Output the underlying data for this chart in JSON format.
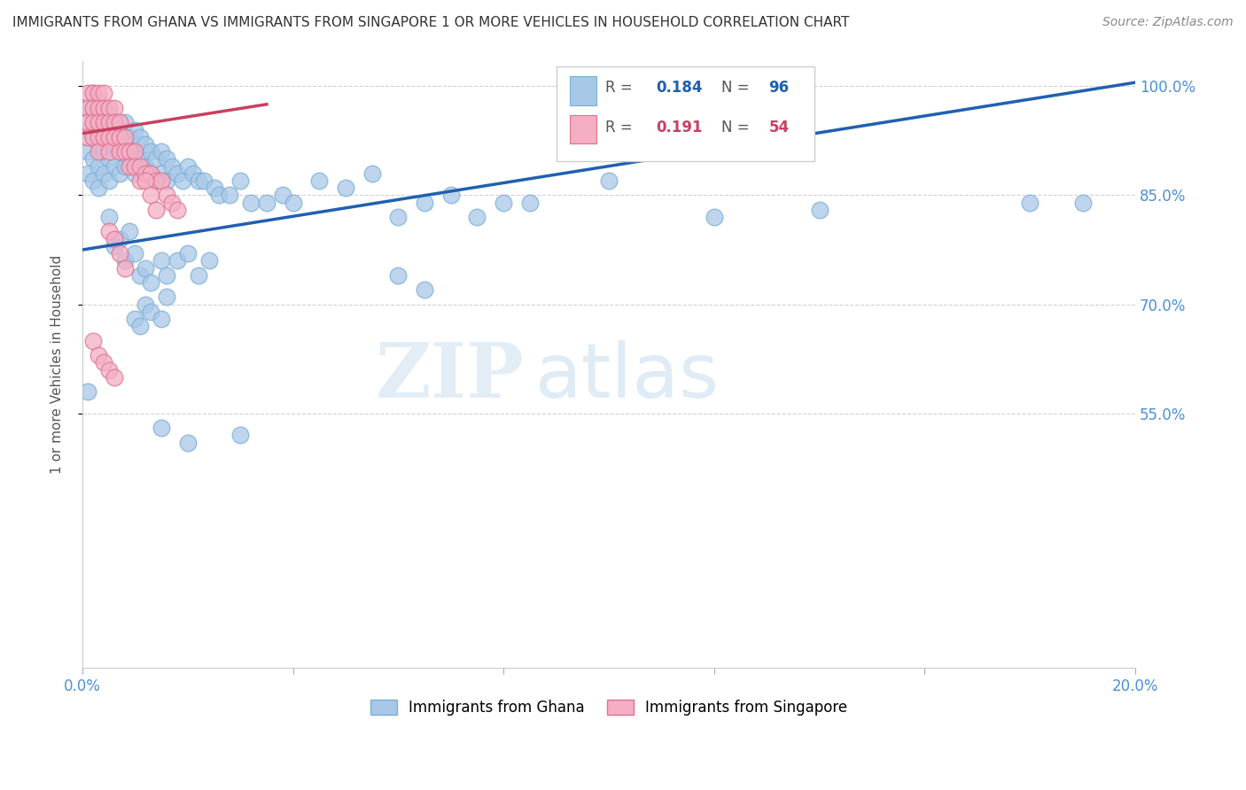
{
  "title": "IMMIGRANTS FROM GHANA VS IMMIGRANTS FROM SINGAPORE 1 OR MORE VEHICLES IN HOUSEHOLD CORRELATION CHART",
  "source": "Source: ZipAtlas.com",
  "ylabel": "1 or more Vehicles in Household",
  "xlim": [
    0.0,
    0.2
  ],
  "ylim": [
    0.2,
    1.035
  ],
  "ghana_color": "#a8c8e8",
  "ghana_edge_color": "#7aaed4",
  "singapore_color": "#f4afc4",
  "singapore_edge_color": "#e07090",
  "ghana_line_color": "#2060b0",
  "singapore_line_color": "#c84060",
  "R_ghana": "0.184",
  "N_ghana": "96",
  "R_singapore": "0.191",
  "N_singapore": "54",
  "legend_label_ghana": "Immigrants from Ghana",
  "legend_label_singapore": "Immigrants from Singapore",
  "watermark_zip": "ZIP",
  "watermark_atlas": "atlas",
  "ghana_line_x0": 0.0,
  "ghana_line_y0": 0.775,
  "ghana_line_x1": 0.2,
  "ghana_line_y1": 1.005,
  "singapore_line_x0": 0.0,
  "singapore_line_y0": 0.935,
  "singapore_line_x1": 0.035,
  "singapore_line_y1": 0.975
}
